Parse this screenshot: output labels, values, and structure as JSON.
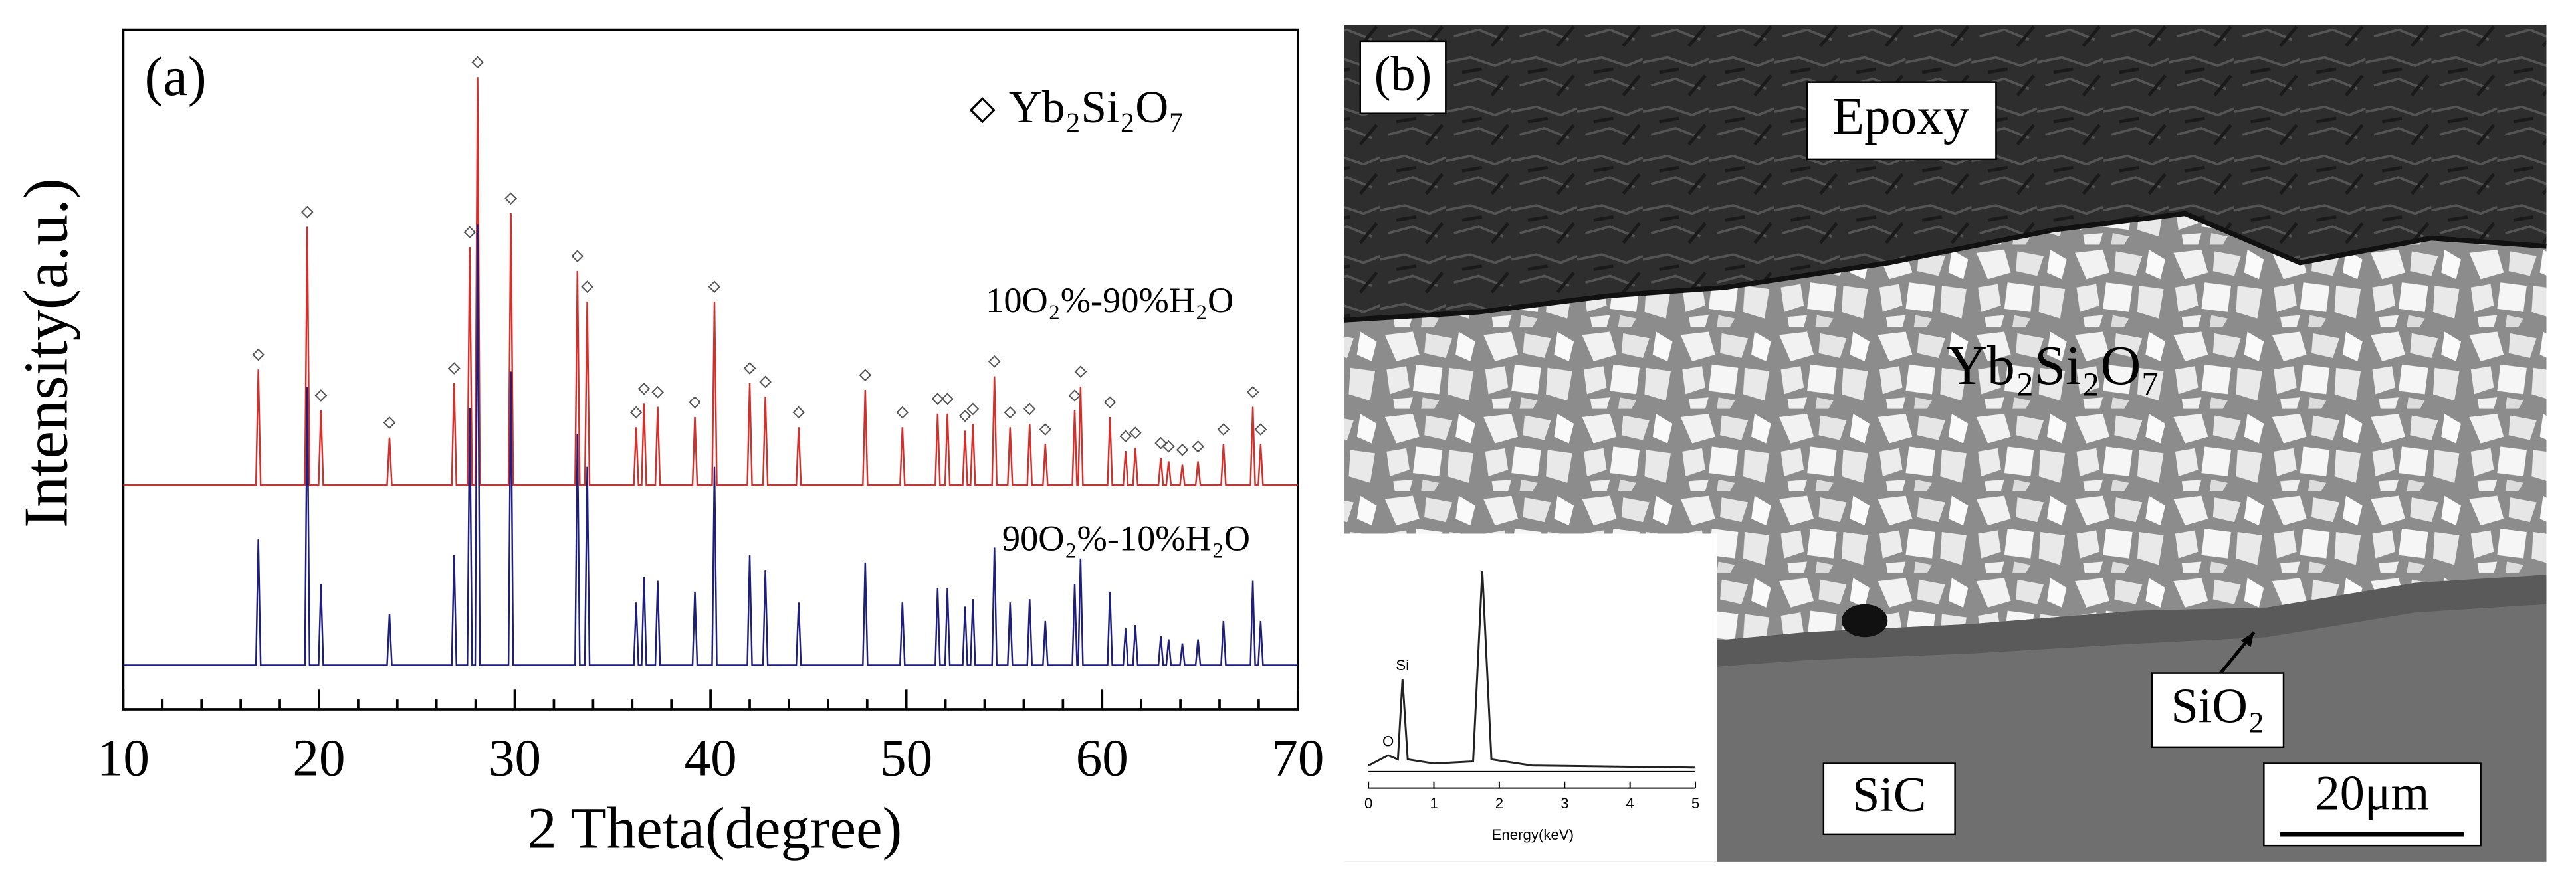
{
  "chart_data": [
    {
      "type": "line",
      "panel_label": "(a)",
      "x_label": "2 Theta(degree)",
      "y_label": "Intensity(a.u.)",
      "marker_label": "Yb₂Si₂O₇",
      "xlim": [
        10,
        70
      ],
      "xticks": [
        10,
        20,
        30,
        40,
        50,
        60,
        70
      ],
      "xticks_minor": [
        12,
        14,
        16,
        18,
        22,
        24,
        26,
        28,
        32,
        34,
        36,
        38,
        42,
        44,
        46,
        48,
        52,
        54,
        56,
        58,
        62,
        64,
        66,
        68
      ],
      "ylim": [
        0,
        100
      ],
      "x": [
        10,
        16.78,
        16.9,
        17.02,
        19.28,
        19.4,
        19.52,
        19.98,
        20.1,
        20.22,
        23.48,
        23.6,
        23.72,
        26.78,
        26.9,
        27.02,
        27.58,
        27.7,
        27.82,
        27.98,
        28.1,
        28.22,
        29.68,
        29.8,
        29.92,
        33.08,
        33.2,
        33.32,
        33.58,
        33.7,
        33.82,
        36.08,
        36.2,
        36.32,
        36.48,
        36.6,
        36.72,
        37.18,
        37.3,
        37.42,
        39.08,
        39.2,
        39.32,
        40.08,
        40.2,
        40.32,
        41.88,
        42.0,
        42.12,
        42.68,
        42.8,
        42.92,
        44.38,
        44.5,
        44.62,
        47.78,
        47.9,
        48.02,
        49.68,
        49.8,
        49.92,
        51.48,
        51.6,
        51.72,
        51.98,
        52.1,
        52.22,
        52.88,
        53.0,
        53.12,
        53.28,
        53.4,
        53.52,
        54.38,
        54.5,
        54.62,
        55.18,
        55.3,
        55.42,
        56.18,
        56.3,
        56.42,
        56.98,
        57.1,
        57.22,
        58.48,
        58.6,
        58.72,
        58.78,
        58.9,
        59.02,
        60.28,
        60.4,
        60.52,
        61.08,
        61.2,
        61.32,
        61.58,
        61.7,
        61.82,
        62.88,
        63.0,
        63.12,
        63.28,
        63.4,
        63.52,
        63.98,
        64.1,
        64.22,
        64.78,
        64.9,
        65.02,
        66.08,
        66.2,
        66.32,
        67.58,
        67.7,
        67.82,
        67.98,
        68.1,
        68.22,
        70
      ],
      "series": [
        {
          "name": "10O₂%-90%H₂O",
          "color": "#d0312d",
          "values": [
            33,
            33,
            50,
            33,
            33,
            71,
            33,
            33,
            44,
            33,
            33,
            40,
            33,
            33,
            48,
            33,
            33,
            68,
            33,
            33,
            93,
            33,
            33,
            73,
            33,
            33,
            64.5,
            33,
            33,
            60,
            33,
            33,
            41.5,
            33,
            33,
            45,
            33,
            33,
            44.5,
            33,
            33,
            43,
            33,
            33,
            60,
            33,
            33,
            48,
            33,
            33,
            46,
            33,
            33,
            41.5,
            33,
            33,
            47,
            33,
            33,
            41.5,
            33,
            33,
            43.5,
            33,
            33,
            43.5,
            33,
            33,
            41,
            33,
            33,
            42,
            33,
            33,
            49,
            33,
            33,
            41.5,
            33,
            33,
            42,
            33,
            33,
            39,
            33,
            33,
            44,
            33,
            33,
            47.5,
            33,
            33,
            43,
            33,
            33,
            38,
            33,
            33,
            38.5,
            33,
            33,
            37,
            33,
            33,
            36.5,
            33,
            33,
            36,
            33,
            33,
            36.5,
            33,
            33,
            39,
            33,
            33,
            44.5,
            33,
            33,
            39,
            33,
            33
          ]
        },
        {
          "name": "90O₂%-10%H₂O",
          "color": "#1f1f7a",
          "values": [
            6.5,
            6.5,
            25,
            6.5,
            6.5,
            47.5,
            6.5,
            6.5,
            18.4,
            6.5,
            6.5,
            14,
            6.5,
            6.5,
            22.7,
            6.5,
            6.5,
            44.3,
            6.5,
            6.5,
            71.3,
            6.5,
            6.5,
            49.7,
            6.5,
            6.5,
            40.5,
            6.5,
            6.5,
            35.7,
            6.5,
            6.5,
            15.7,
            6.5,
            6.5,
            19.5,
            6.5,
            6.5,
            18.9,
            6.5,
            6.5,
            17.3,
            6.5,
            6.5,
            35.7,
            6.5,
            6.5,
            22.7,
            6.5,
            6.5,
            20.5,
            6.5,
            6.5,
            15.7,
            6.5,
            6.5,
            21.6,
            6.5,
            6.5,
            15.7,
            6.5,
            6.5,
            17.8,
            6.5,
            6.5,
            17.8,
            6.5,
            6.5,
            15.1,
            6.5,
            6.5,
            16.2,
            6.5,
            6.5,
            23.8,
            6.5,
            6.5,
            15.7,
            6.5,
            6.5,
            16.2,
            6.5,
            6.5,
            13,
            6.5,
            6.5,
            18.4,
            6.5,
            6.5,
            22.2,
            6.5,
            6.5,
            17.3,
            6.5,
            6.5,
            11.9,
            6.5,
            6.5,
            12.4,
            6.5,
            6.5,
            10.8,
            6.5,
            6.5,
            10.3,
            6.5,
            6.5,
            9.7,
            6.5,
            6.5,
            10.3,
            6.5,
            6.5,
            13,
            6.5,
            6.5,
            18.9,
            6.5,
            6.5,
            13,
            6.5,
            6.5
          ]
        }
      ]
    },
    {
      "type": "line",
      "x_label": "Energy(keV)",
      "xlim": [
        0,
        5
      ],
      "xticks": [
        0,
        1,
        2,
        3,
        4,
        5
      ],
      "ylim": [
        0,
        100
      ],
      "peak_labels": [
        "O",
        "Si"
      ],
      "x": [
        0,
        0.3,
        0.45,
        0.52,
        0.6,
        1.0,
        1.6,
        1.74,
        1.88,
        2.5,
        5
      ],
      "values": [
        3,
        8,
        6,
        45,
        6,
        4,
        5,
        98,
        6,
        3,
        2
      ],
      "color": "#222222"
    }
  ],
  "image": {
    "label": "(b)",
    "regions": [
      "Epoxy",
      "Yb₂Si₂O₇",
      "SiO₂",
      "SiC"
    ],
    "scale_bar": "20μm"
  }
}
